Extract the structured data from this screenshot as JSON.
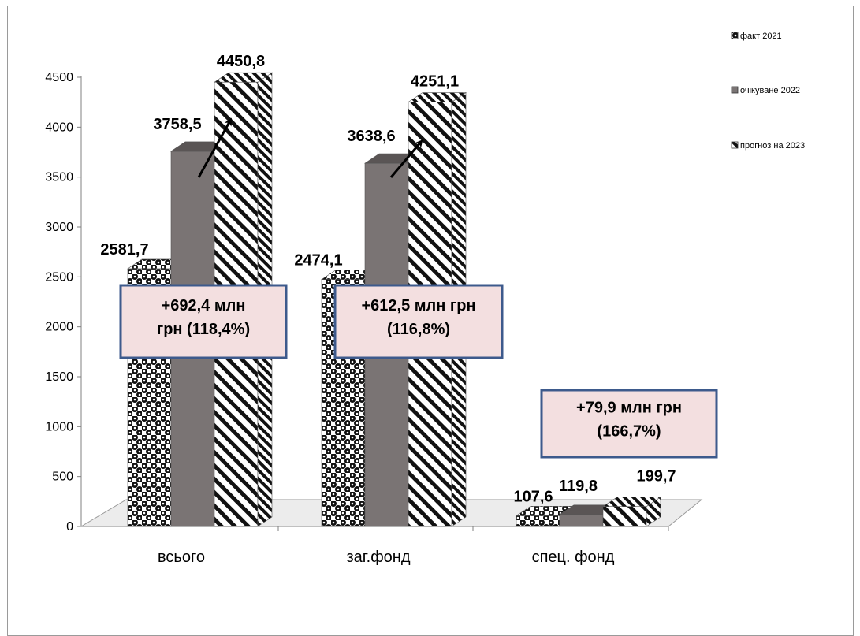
{
  "chart_data": {
    "type": "bar",
    "categories": [
      "всього",
      "заг.фонд",
      "спец. фонд"
    ],
    "series": [
      {
        "name": "факт 2021",
        "values": [
          2581.7,
          2474.1,
          107.6
        ],
        "labels": [
          "2581,7",
          "2474,1",
          "107,6"
        ],
        "pattern": "dots"
      },
      {
        "name": "очікуване 2022",
        "values": [
          3758.5,
          3638.6,
          119.8
        ],
        "labels": [
          "3758,5",
          "3638,6",
          "119,8"
        ],
        "pattern": "solid"
      },
      {
        "name": "прогноз на 2023",
        "values": [
          4450.8,
          4251.1,
          199.7
        ],
        "labels": [
          "4450,8",
          "4251,1",
          "199,7"
        ],
        "pattern": "stripes"
      }
    ],
    "y_ticks": [
      "0",
      "500",
      "1000",
      "1500",
      "2000",
      "2500",
      "3000",
      "3500",
      "4000",
      "4500"
    ],
    "ylim": [
      0,
      4500
    ],
    "grid": false,
    "legend_position": "top-right",
    "annotations": [
      {
        "category": "всього",
        "lines": [
          "+692,4 млн",
          "грн (118,4%)"
        ],
        "arrow": true
      },
      {
        "category": "заг.фонд",
        "lines": [
          "+612,5 млн грн",
          "(116,8%)"
        ],
        "arrow": true
      },
      {
        "category": "спец. фонд",
        "lines": [
          "+79,9 млн грн",
          "(166,7%)"
        ],
        "arrow": false
      }
    ],
    "colors": {
      "solid_bar": "#7a7474",
      "solid_top": "#5a5555",
      "annotation_fill": "#f3dfe0",
      "annotation_border": "#3d5a8c",
      "floor": "#ececec",
      "axis": "#808080"
    }
  }
}
